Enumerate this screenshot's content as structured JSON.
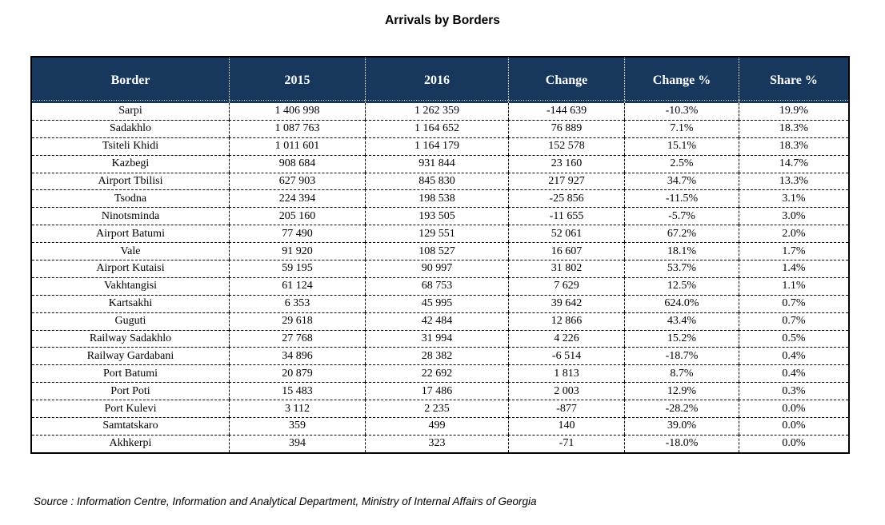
{
  "title": "Arrivals by Borders",
  "colors": {
    "header_bg": "#17375D",
    "header_text": "#FFFFFF",
    "body_text": "#000000",
    "page_bg": "#FFFFFF"
  },
  "table": {
    "columns": [
      "Border",
      "2015",
      "2016",
      "Change",
      "Change %",
      "Share %"
    ],
    "column_keys": [
      "border",
      "2015",
      "2016",
      "change",
      "change-pct",
      "share-pct"
    ],
    "rows": [
      [
        "Sarpi",
        "1 406 998",
        "1 262 359",
        "-144 639",
        "-10.3%",
        "19.9%"
      ],
      [
        "Sadakhlo",
        "1 087 763",
        "1 164 652",
        "76 889",
        "7.1%",
        "18.3%"
      ],
      [
        "Tsiteli Khidi",
        "1 011 601",
        "1 164 179",
        "152 578",
        "15.1%",
        "18.3%"
      ],
      [
        "Kazbegi",
        "908 684",
        "931 844",
        "23 160",
        "2.5%",
        "14.7%"
      ],
      [
        "Airport Tbilisi",
        "627 903",
        "845 830",
        "217 927",
        "34.7%",
        "13.3%"
      ],
      [
        "Tsodna",
        "224 394",
        "198 538",
        "-25 856",
        "-11.5%",
        "3.1%"
      ],
      [
        "Ninotsminda",
        "205 160",
        "193 505",
        "-11 655",
        "-5.7%",
        "3.0%"
      ],
      [
        "Airport Batumi",
        "77 490",
        "129 551",
        "52 061",
        "67.2%",
        "2.0%"
      ],
      [
        "Vale",
        "91 920",
        "108 527",
        "16 607",
        "18.1%",
        "1.7%"
      ],
      [
        "Airport Kutaisi",
        "59 195",
        "90 997",
        "31 802",
        "53.7%",
        "1.4%"
      ],
      [
        "Vakhtangisi",
        "61 124",
        "68 753",
        "7 629",
        "12.5%",
        "1.1%"
      ],
      [
        "Kartsakhi",
        "6 353",
        "45 995",
        "39 642",
        "624.0%",
        "0.7%"
      ],
      [
        "Guguti",
        "29 618",
        "42 484",
        "12 866",
        "43.4%",
        "0.7%"
      ],
      [
        "Railway Sadakhlo",
        "27 768",
        "31 994",
        "4 226",
        "15.2%",
        "0.5%"
      ],
      [
        "Railway Gardabani",
        "34 896",
        "28 382",
        "-6 514",
        "-18.7%",
        "0.4%"
      ],
      [
        "Port Batumi",
        "20 879",
        "22 692",
        "1 813",
        "8.7%",
        "0.4%"
      ],
      [
        "Port Poti",
        "15 483",
        "17 486",
        "2 003",
        "12.9%",
        "0.3%"
      ],
      [
        "Port Kulevi",
        "3 112",
        "2 235",
        "-877",
        "-28.2%",
        "0.0%"
      ],
      [
        "Samtatskaro",
        "359",
        "499",
        "140",
        "39.0%",
        "0.0%"
      ],
      [
        "Akhkerpi",
        "394",
        "323",
        "-71",
        "-18.0%",
        "0.0%"
      ]
    ]
  },
  "source": "Source : Information Centre, Information and Analytical Department, Ministry of Internal Affairs of Georgia"
}
